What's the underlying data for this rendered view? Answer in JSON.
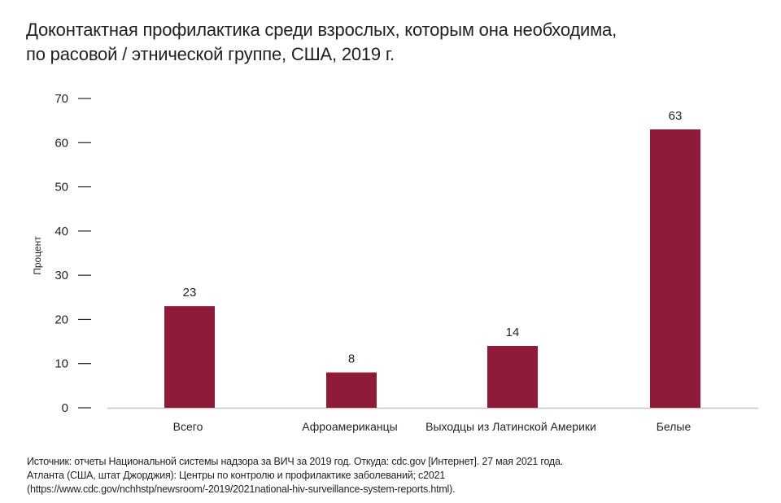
{
  "chart_data": {
    "type": "bar",
    "title": [
      "Доконтактная профилактика среди взрослых, которым она необходима,",
      "по расовой / этнической группе, США, 2019 г."
    ],
    "xlabel": "",
    "ylabel": "Процент",
    "ylim": [
      0,
      70
    ],
    "yticks": [
      0,
      10,
      20,
      30,
      40,
      50,
      60,
      70
    ],
    "categories": [
      "Всего",
      "Афроамериканцы",
      "Выходцы из Латинской Америки",
      "Белые"
    ],
    "values": [
      23,
      8,
      14,
      63
    ],
    "data_labels": [
      "23",
      "8",
      "14",
      "63"
    ],
    "grid": false,
    "bar_color": "#8f1a3a",
    "axis_color": "#c8c4c4"
  },
  "source": [
    "Источник: отчеты Национальной системы надзора за ВИЧ за 2019 год. Откуда: cdc.gov [Интернет]. 27 мая 2021 года.",
    "Атланта (США, штат Джорджия): Центры по контролю и профилактике заболеваний; c2021",
    "(https://www.cdc.gov/nchhstp/newsroom/-2019/2021national-hiv-surveillance-system-reports.html)."
  ]
}
